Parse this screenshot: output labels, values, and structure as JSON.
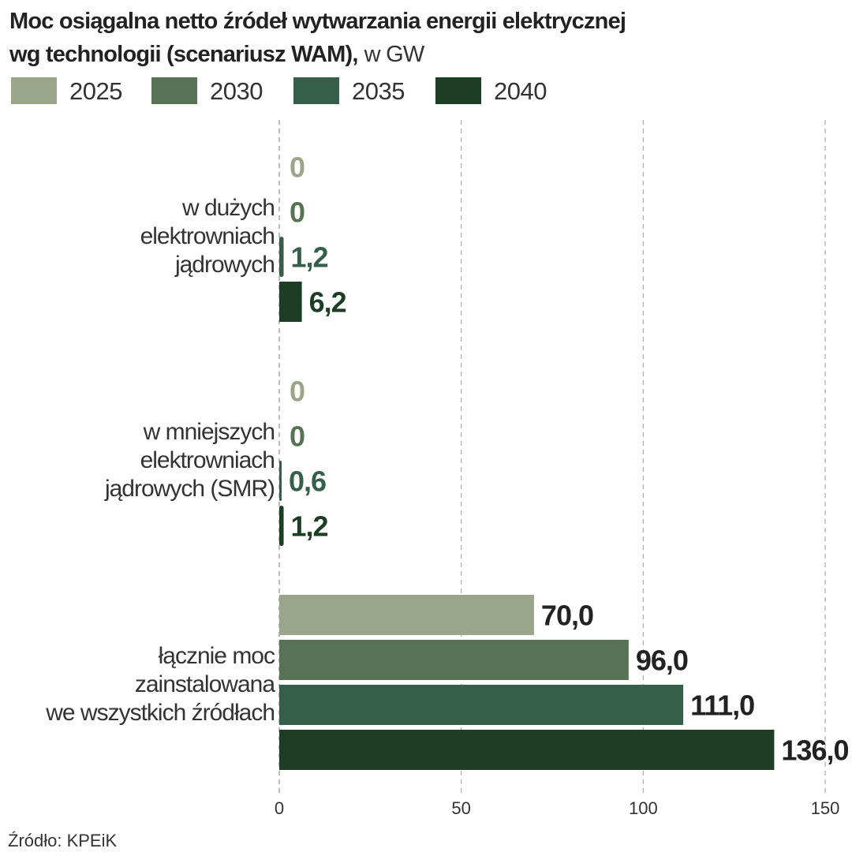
{
  "chart_data": {
    "type": "bar",
    "orientation": "horizontal",
    "title_bold_line1": "Moc osiągalna netto źródeł wytwarzania energii elektrycznej",
    "title_bold_line2": "wg technologii (scenariusz WAM),",
    "title_unit": "w GW",
    "categories": [
      [
        "w dużych",
        "elektrowniach",
        "jądrowych"
      ],
      [
        "w mniejszych",
        "elektrowniach",
        "jądrowych (SMR)"
      ],
      [
        "łącznie moc",
        "zainstalowana",
        "we wszystkich źródłach"
      ]
    ],
    "series": [
      {
        "name": "2025",
        "color": "#9aa58a",
        "values": [
          0,
          0,
          70.0
        ],
        "labels": [
          "0",
          "0",
          "70,0"
        ]
      },
      {
        "name": "2030",
        "color": "#587255",
        "values": [
          0,
          0,
          96.0
        ],
        "labels": [
          "0",
          "0",
          "96,0"
        ]
      },
      {
        "name": "2035",
        "color": "#365f4b",
        "values": [
          1.2,
          0.6,
          111.0
        ],
        "labels": [
          "1,2",
          "0,6",
          "111,0"
        ]
      },
      {
        "name": "2040",
        "color": "#1e3d25",
        "values": [
          6.2,
          1.2,
          136.0
        ],
        "labels": [
          "6,2",
          "1,2",
          "136,0"
        ]
      }
    ],
    "xlim": [
      0,
      150
    ],
    "xticks": [
      "0",
      "50",
      "100",
      "150"
    ],
    "xtick_values": [
      0,
      50,
      100,
      150
    ],
    "grid": "vertical dashed",
    "legend_placement": "top-left",
    "total_label_color": "#222222",
    "source": "Źródło: KPEiK"
  }
}
